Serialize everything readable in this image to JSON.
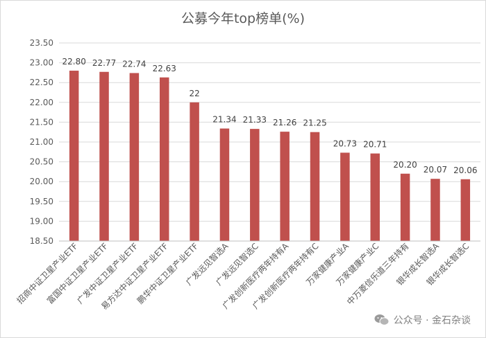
{
  "chart_data": {
    "type": "bar",
    "title": "公募今年top榜单(%)",
    "categories": [
      "招商中证卫星产业ETF",
      "富国中证卫星产业ETF",
      "广发中证卫星产业ETF",
      "易方达中证卫星产业ETF",
      "鹏华中证卫星产业ETF",
      "广发远见智选A",
      "广发远见智选C",
      "广发创新医疗两年持有A",
      "广发创新医疗两年持有C",
      "万家健康产业A",
      "万家健康产业C",
      "中万菱信乐道三年持有",
      "银华成长智选A",
      "银华成长智选C"
    ],
    "values": [
      22.8,
      22.77,
      22.74,
      22.63,
      22,
      21.34,
      21.33,
      21.26,
      21.25,
      20.73,
      20.71,
      20.2,
      20.07,
      20.06
    ],
    "data_labels": [
      "22.80",
      "22.77",
      "22.74",
      "22.63",
      "22",
      "21.34",
      "21.33",
      "21.26",
      "21.25",
      "20.73",
      "20.71",
      "20.20",
      "20.07",
      "20.06"
    ],
    "ylim": [
      18.5,
      23.5
    ],
    "yticks": [
      "18.50",
      "19.00",
      "19.50",
      "20.00",
      "20.50",
      "21.00",
      "21.50",
      "22.00",
      "22.50",
      "23.00",
      "23.50"
    ],
    "grid": true,
    "bar_color": "#c0504d",
    "xlabel": "",
    "ylabel": ""
  },
  "watermark": {
    "text": "公众号 · 金石杂谈",
    "icon": "wechat-icon"
  }
}
